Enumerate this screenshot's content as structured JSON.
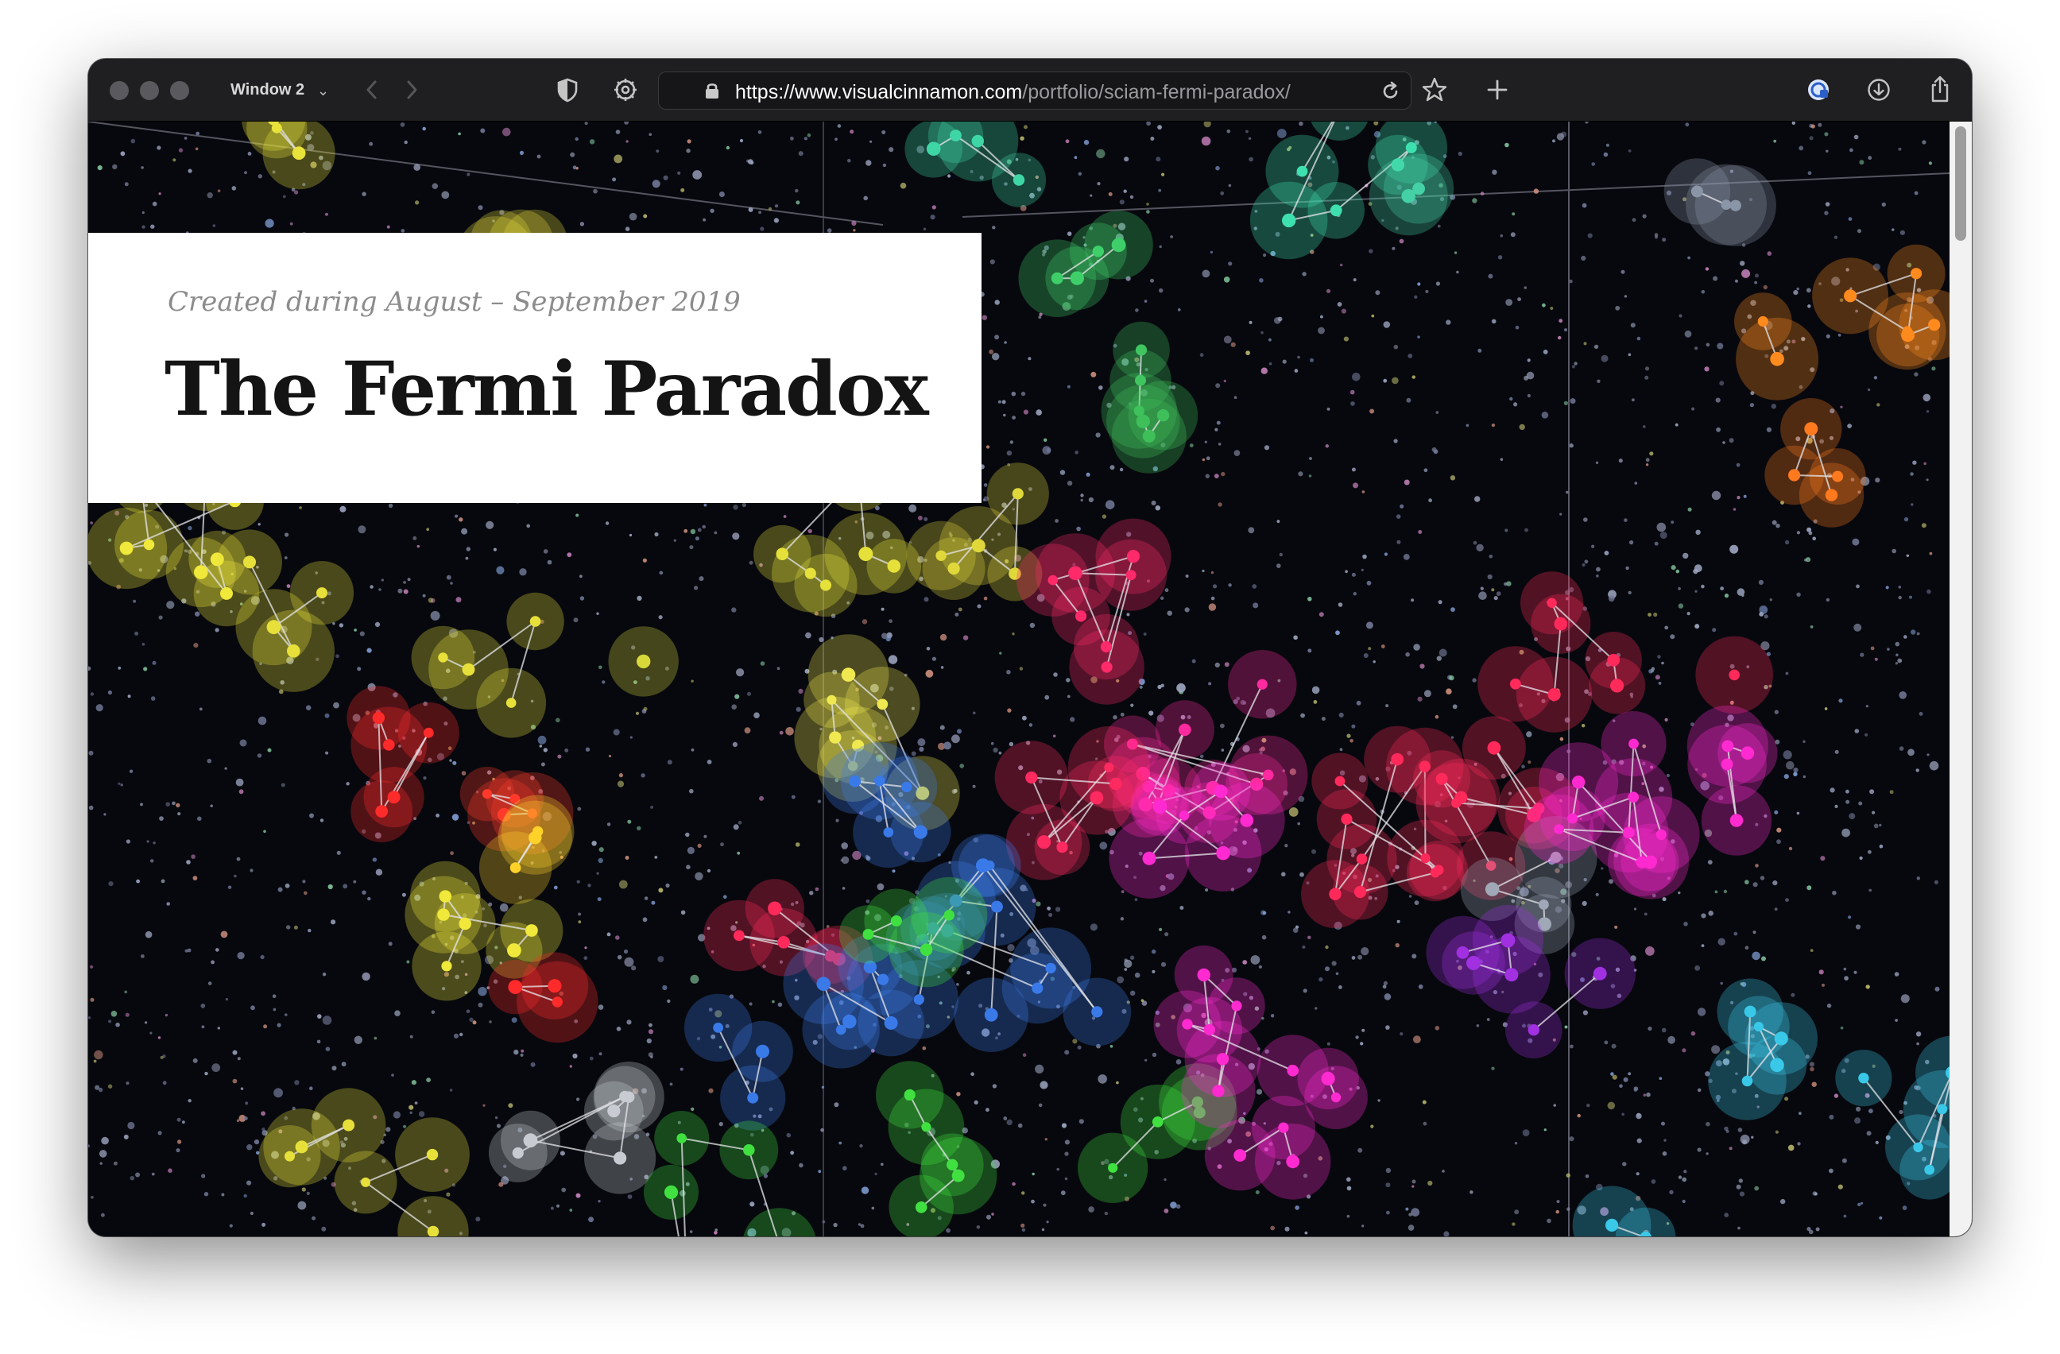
{
  "browser": {
    "window_label": "Window 2",
    "url_host": "https://www.visualcinnamon.com",
    "url_path": "/portfolio/sciam-fermi-paradox/",
    "icons": {
      "sidebar": "shield-icon",
      "tab_overview": "gear-icon",
      "back": "chevron-left-icon",
      "forward": "chevron-right-icon",
      "lock": "lock-icon",
      "reload": "reload-icon",
      "bookmark": "star-icon",
      "new_tab": "plus-icon",
      "extension": "extension-icon",
      "downloads": "download-icon",
      "share": "share-icon"
    }
  },
  "page": {
    "date_label": "Created during August – September 2019",
    "title": "The Fermi Paradox",
    "colors": {
      "background": "#07080d",
      "card": "#ffffff",
      "title_text": "#141414",
      "date_text": "#8c8c8c"
    }
  }
}
